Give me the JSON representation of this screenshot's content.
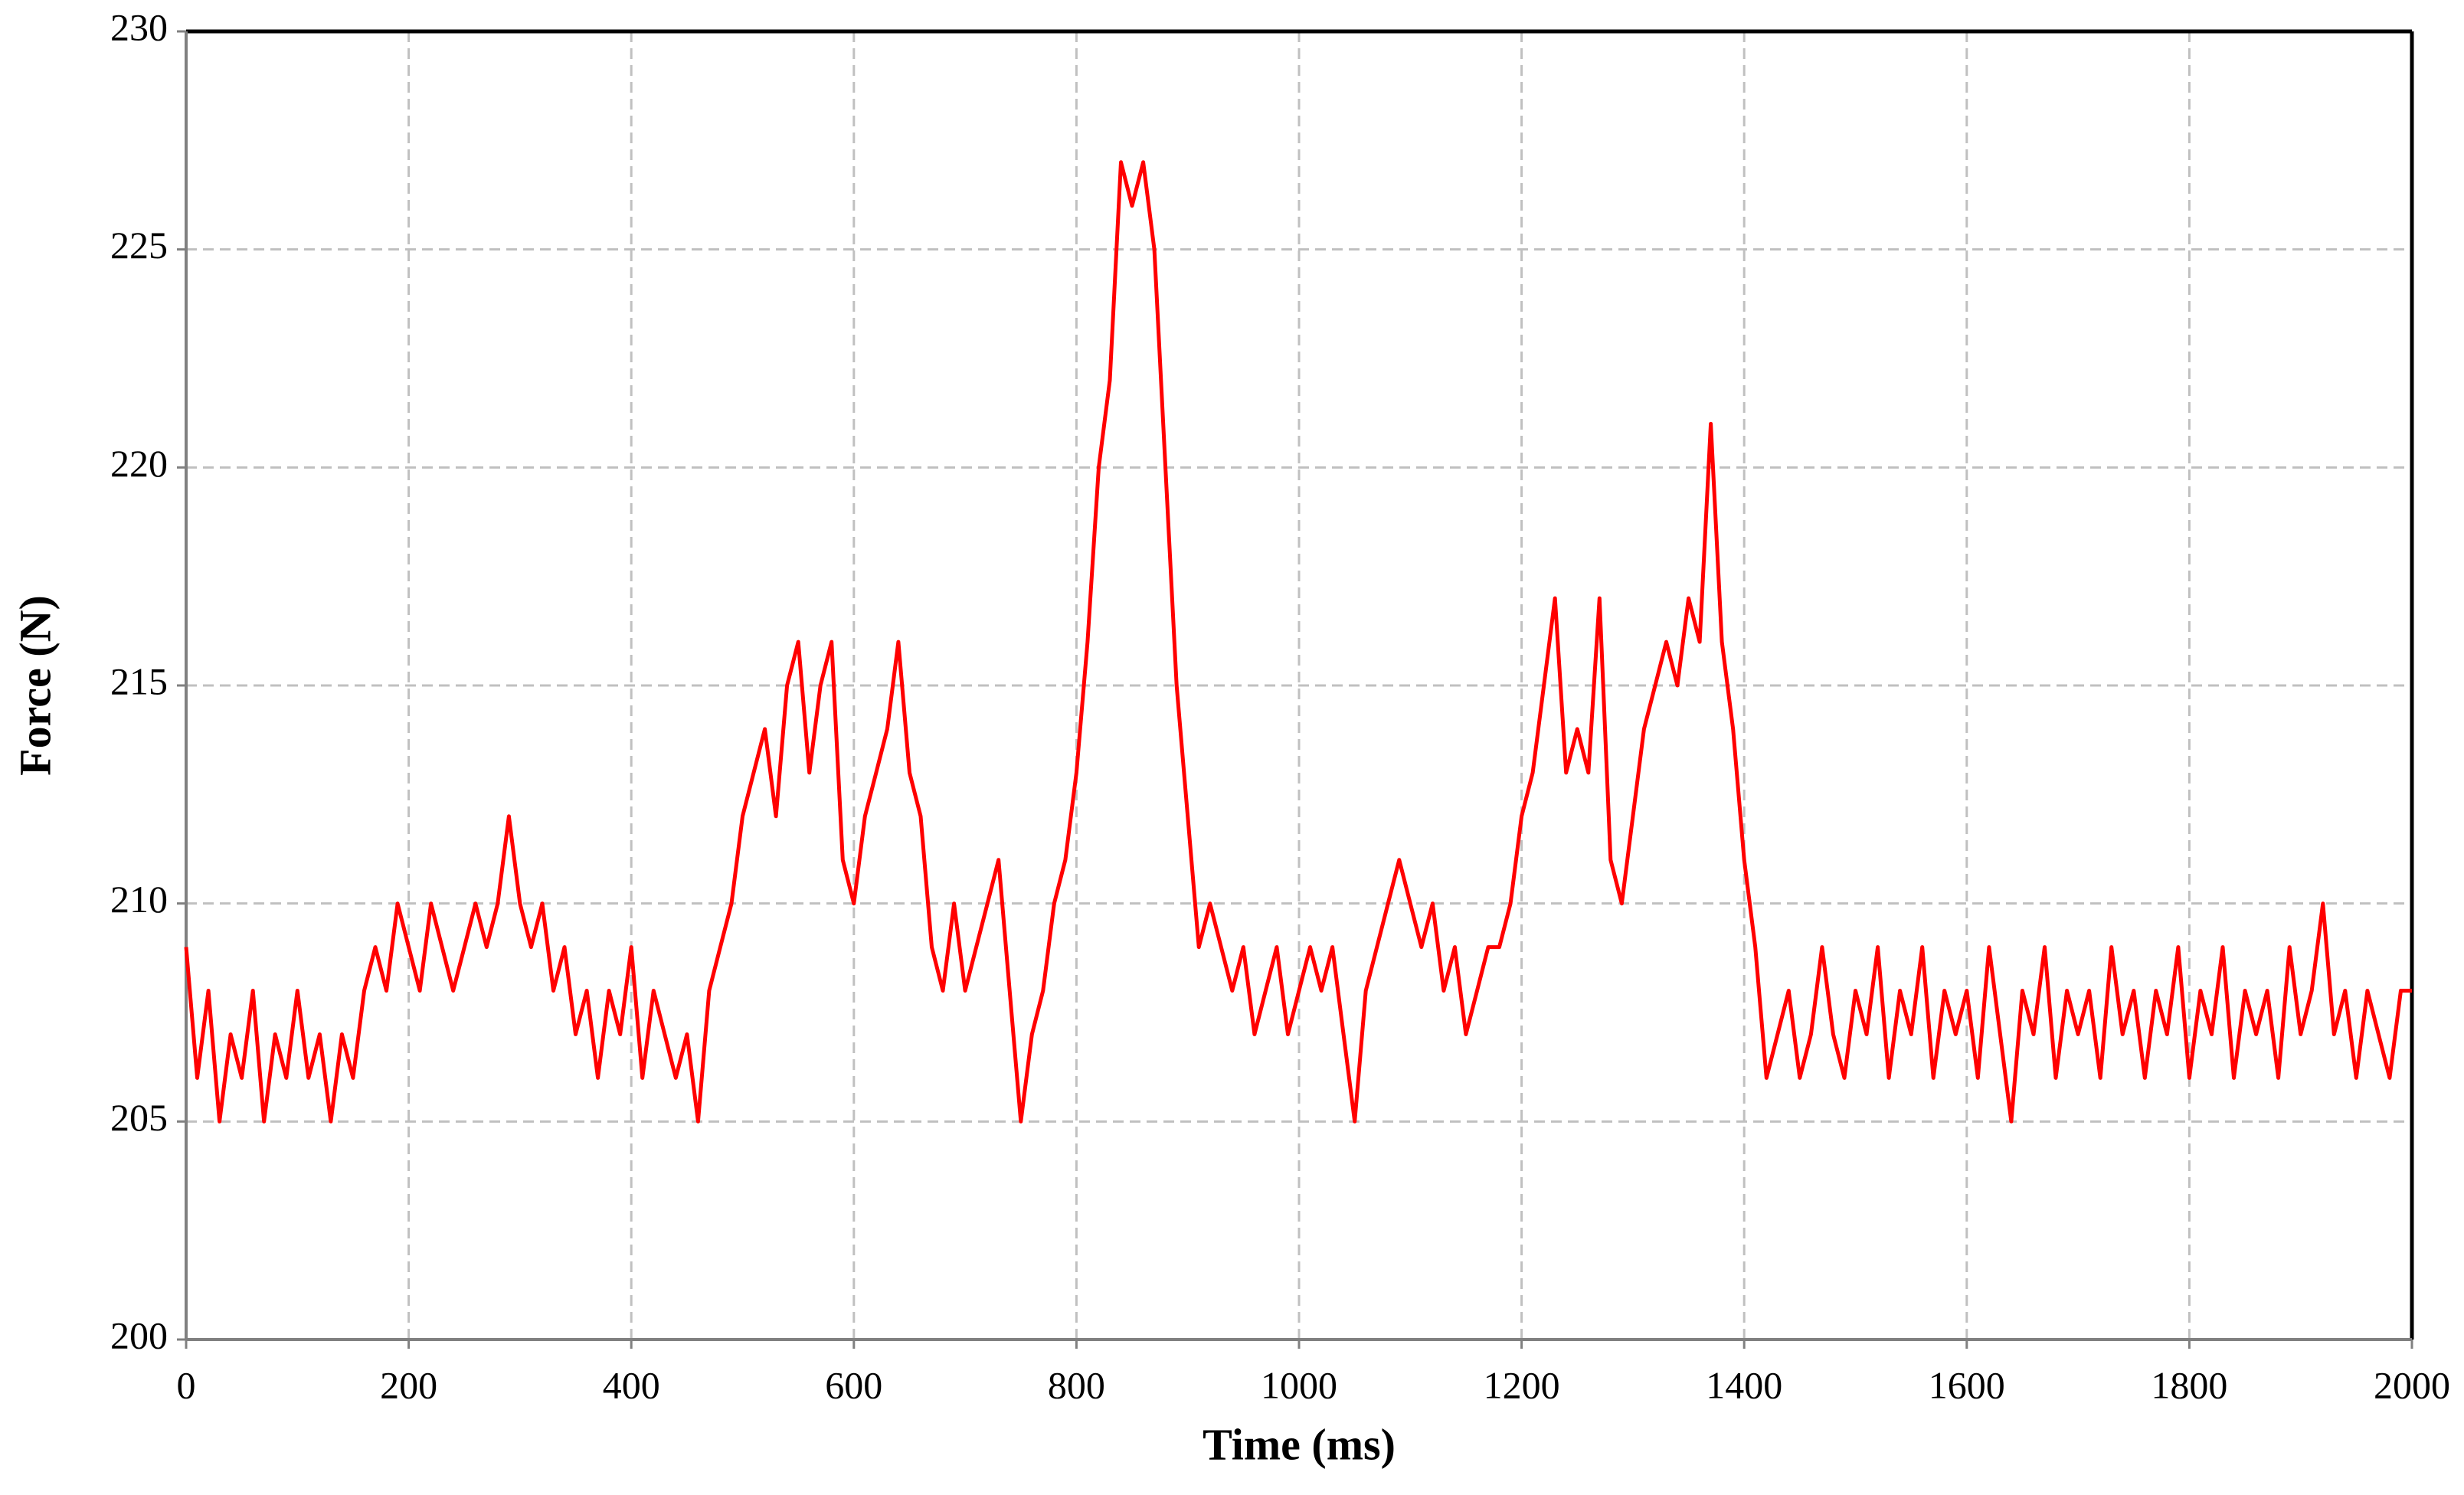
{
  "chart_data": {
    "type": "line",
    "xlabel": "Time (ms)",
    "ylabel": "Force (N)",
    "x": [
      0,
      10,
      20,
      30,
      40,
      50,
      60,
      70,
      80,
      90,
      100,
      110,
      120,
      130,
      140,
      150,
      160,
      170,
      180,
      190,
      200,
      210,
      220,
      230,
      240,
      250,
      260,
      270,
      280,
      290,
      300,
      310,
      320,
      330,
      340,
      350,
      360,
      370,
      380,
      390,
      400,
      410,
      420,
      430,
      440,
      450,
      460,
      470,
      480,
      490,
      500,
      510,
      520,
      530,
      540,
      550,
      560,
      570,
      580,
      590,
      600,
      610,
      620,
      630,
      640,
      650,
      660,
      670,
      680,
      690,
      700,
      710,
      720,
      730,
      740,
      750,
      760,
      770,
      780,
      790,
      800,
      810,
      820,
      830,
      840,
      850,
      860,
      870,
      880,
      890,
      900,
      910,
      920,
      930,
      940,
      950,
      960,
      970,
      980,
      990,
      1000,
      1010,
      1020,
      1030,
      1040,
      1050,
      1060,
      1070,
      1080,
      1090,
      1100,
      1110,
      1120,
      1130,
      1140,
      1150,
      1160,
      1170,
      1180,
      1190,
      1200,
      1210,
      1220,
      1230,
      1240,
      1250,
      1260,
      1270,
      1280,
      1290,
      1300,
      1310,
      1320,
      1330,
      1340,
      1350,
      1360,
      1370,
      1380,
      1390,
      1400,
      1410,
      1420,
      1430,
      1440,
      1450,
      1460,
      1470,
      1480,
      1490,
      1500,
      1510,
      1520,
      1530,
      1540,
      1550,
      1560,
      1570,
      1580,
      1590,
      1600,
      1610,
      1620,
      1630,
      1640,
      1650,
      1660,
      1670,
      1680,
      1690,
      1700,
      1710,
      1720,
      1730,
      1740,
      1750,
      1760,
      1770,
      1780,
      1790,
      1800,
      1810,
      1820,
      1830,
      1840,
      1850,
      1860,
      1870,
      1880,
      1890,
      1900,
      1910,
      1920,
      1930,
      1940,
      1950,
      1960,
      1970,
      1980,
      1990,
      2000
    ],
    "values": [
      209,
      206,
      208,
      205,
      207,
      206,
      208,
      205,
      207,
      206,
      208,
      206,
      207,
      205,
      207,
      206,
      208,
      209,
      208,
      210,
      209,
      208,
      210,
      209,
      208,
      209,
      210,
      209,
      210,
      212,
      210,
      209,
      210,
      208,
      209,
      207,
      208,
      206,
      208,
      207,
      209,
      206,
      208,
      207,
      206,
      207,
      205,
      208,
      209,
      210,
      212,
      213,
      214,
      212,
      215,
      216,
      213,
      215,
      216,
      211,
      210,
      212,
      213,
      214,
      216,
      213,
      212,
      209,
      208,
      210,
      208,
      209,
      210,
      211,
      208,
      205,
      207,
      208,
      210,
      211,
      213,
      216,
      220,
      222,
      227,
      226,
      227,
      225,
      220,
      215,
      212,
      209,
      210,
      209,
      208,
      209,
      207,
      208,
      209,
      207,
      208,
      209,
      208,
      209,
      207,
      205,
      208,
      209,
      210,
      211,
      210,
      209,
      210,
      208,
      209,
      207,
      208,
      209,
      209,
      210,
      212,
      213,
      215,
      217,
      213,
      214,
      213,
      217,
      211,
      210,
      212,
      214,
      215,
      216,
      215,
      217,
      216,
      221,
      216,
      214,
      211,
      209,
      206,
      207,
      208,
      206,
      207,
      209,
      207,
      206,
      208,
      207,
      209,
      206,
      208,
      207,
      209,
      206,
      208,
      207,
      208,
      206,
      209,
      207,
      205,
      208,
      207,
      209,
      206,
      208,
      207,
      208,
      206,
      209,
      207,
      208,
      206,
      208,
      207,
      209,
      206,
      208,
      207,
      209,
      206,
      208,
      207,
      208,
      206,
      209,
      207,
      208,
      210,
      207,
      208,
      206,
      208,
      207,
      206,
      208,
      208
    ],
    "color": "#ff0000",
    "xlim": [
      0,
      2000
    ],
    "xticks": [
      0,
      200,
      400,
      600,
      800,
      1000,
      1200,
      1400,
      1600,
      1800,
      2000
    ],
    "ylim": [
      200,
      230
    ],
    "yticks": [
      200,
      205,
      210,
      215,
      220,
      225,
      230
    ],
    "grid": true
  }
}
